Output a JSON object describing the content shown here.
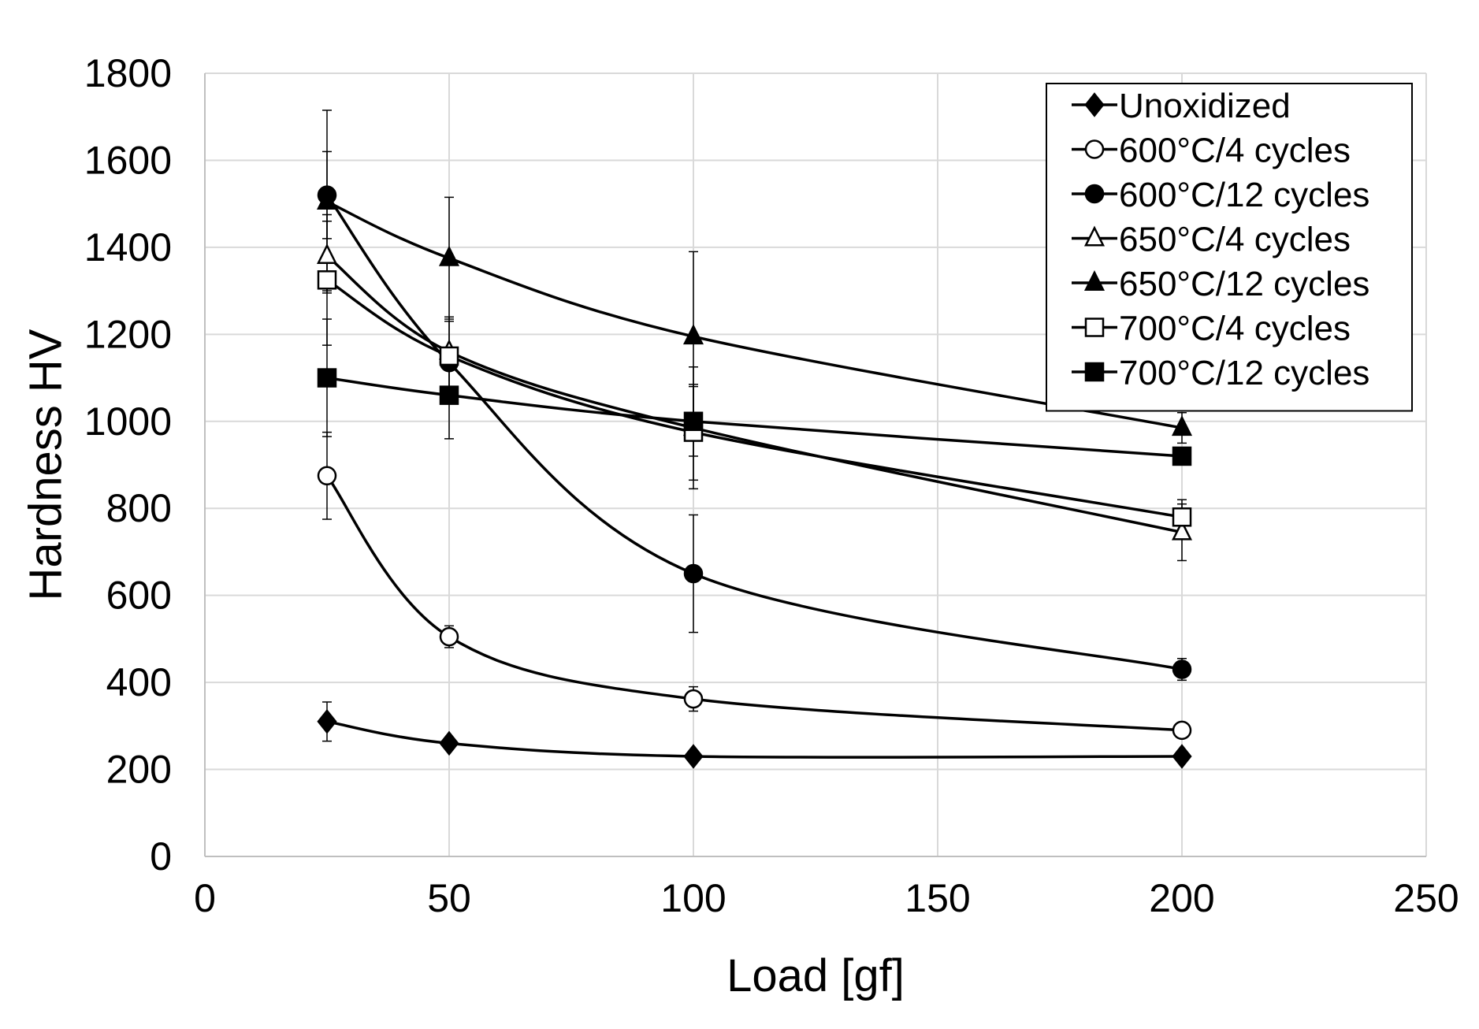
{
  "chart_data": {
    "type": "line",
    "title": "",
    "xlabel": "Load [gf]",
    "ylabel": "Hardness HV",
    "xlim": [
      0,
      250
    ],
    "ylim": [
      0,
      1800
    ],
    "xticks": [
      "0",
      "50",
      "100",
      "150",
      "200",
      "250"
    ],
    "yticks": [
      "0",
      "200",
      "400",
      "600",
      "800",
      "1000",
      "1200",
      "1400",
      "1600",
      "1800"
    ],
    "grid": true,
    "legend_position": "top-right",
    "x": [
      25,
      50,
      100,
      200
    ],
    "series": [
      {
        "name": "Unoxidized",
        "marker": "diamond",
        "filled": true,
        "values": [
          310,
          260,
          230,
          230
        ],
        "errors": [
          45,
          0,
          0,
          0
        ]
      },
      {
        "name": "600°C/4 cycles",
        "marker": "circle",
        "filled": false,
        "values": [
          875,
          505,
          362,
          290
        ],
        "errors": [
          100,
          25,
          28,
          0
        ]
      },
      {
        "name": "600°C/12 cycles",
        "marker": "circle",
        "filled": true,
        "values": [
          1520,
          1135,
          650,
          430
        ],
        "errors": [
          100,
          0,
          135,
          25
        ]
      },
      {
        "name": "650°C/4 cycles",
        "marker": "triangle",
        "filled": false,
        "values": [
          1380,
          1160,
          985,
          745
        ],
        "errors": [
          80,
          80,
          140,
          65
        ]
      },
      {
        "name": "650°C/12 cycles",
        "marker": "triangle",
        "filled": true,
        "values": [
          1505,
          1375,
          1195,
          985
        ],
        "errors": [
          210,
          140,
          195,
          35
        ]
      },
      {
        "name": "700°C/4 cycles",
        "marker": "square",
        "filled": false,
        "values": [
          1325,
          1150,
          975,
          780
        ],
        "errors": [
          150,
          80,
          110,
          40
        ]
      },
      {
        "name": "700°C/12 cycles",
        "marker": "square",
        "filled": true,
        "values": [
          1100,
          1060,
          1000,
          920
        ],
        "errors": [
          135,
          100,
          80,
          0
        ]
      }
    ]
  },
  "colors": {
    "line": "#000000",
    "grid": "#d9d9d9",
    "background": "#ffffff"
  }
}
